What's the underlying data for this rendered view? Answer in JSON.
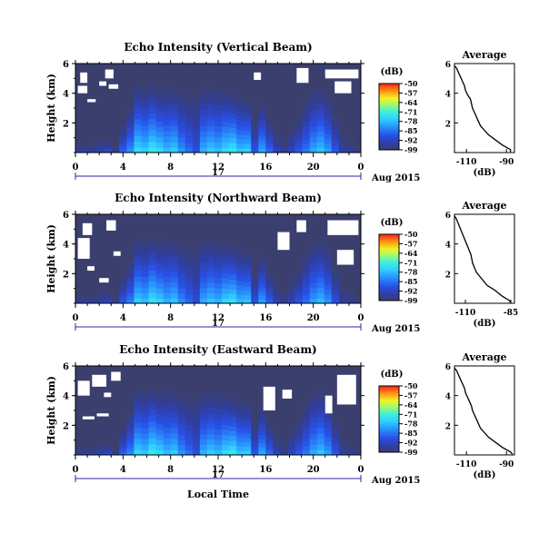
{
  "chart_data": [
    {
      "type": "heatmap",
      "title": "Echo Intensity (Vertical Beam)",
      "ylabel": "Height (km)",
      "yticks": [
        "2",
        "4",
        "6"
      ],
      "ylim": [
        0,
        6
      ],
      "xticks": [
        "0",
        "4",
        "8",
        "12",
        "16",
        "20",
        "0"
      ],
      "xlim": [
        0,
        24
      ],
      "date_row": {
        "day": "17",
        "month_year": "Aug 2015"
      },
      "colorbar": {
        "unit": "(dB)",
        "ticks": [
          "-50",
          "-57",
          "-64",
          "-71",
          "-78",
          "-85",
          "-92",
          "-99"
        ],
        "range": [
          -99,
          -50
        ]
      },
      "surface_cells": [
        -92,
        -90,
        -92,
        -91,
        -88,
        -94,
        -85,
        -80,
        -72,
        -74,
        -70,
        -72,
        -76,
        -74,
        -80,
        -84,
        -88,
        -77,
        -74,
        -76,
        -72,
        -70,
        -75,
        -74,
        -86,
        -78,
        -84,
        -90,
        -94,
        -90,
        -86,
        -83,
        -78,
        -75,
        -79,
        -86,
        -92,
        -94,
        -95
      ],
      "echo_top_km": [
        0.6,
        0.5,
        0.6,
        1.1,
        0.8,
        0.5,
        2.0,
        3.1,
        4.6,
        4.4,
        4.6,
        4.2,
        4.5,
        4.4,
        4.1,
        4.0,
        4.0,
        4.4,
        4.4,
        4.3,
        4.2,
        4.0,
        3.8,
        3.6,
        2.2,
        3.4,
        2.3,
        1.3,
        0.9,
        1.6,
        2.4,
        3.6,
        4.3,
        4.4,
        3.8,
        2.5,
        1.2,
        0.8,
        0.5
      ],
      "white_patches_hours_km": [
        [
          0.2,
          1.0,
          4.0,
          4.5
        ],
        [
          0.4,
          1.0,
          4.7,
          5.4
        ],
        [
          2.5,
          3.2,
          5.0,
          5.6
        ],
        [
          2.0,
          2.6,
          4.5,
          4.8
        ],
        [
          1.0,
          1.7,
          3.4,
          3.6
        ],
        [
          2.8,
          3.6,
          4.3,
          4.6
        ],
        [
          15.0,
          15.6,
          4.9,
          5.4
        ],
        [
          18.6,
          19.6,
          4.7,
          5.7
        ],
        [
          21.0,
          23.8,
          5.0,
          5.6
        ],
        [
          21.8,
          23.2,
          4.0,
          4.8
        ]
      ],
      "average_profile": {
        "title": "Average",
        "xlabel": "(dB)",
        "xticks": [
          "-110",
          "-90"
        ],
        "xlim": [
          -116,
          -86
        ],
        "yticks": [
          "2",
          "4",
          "6"
        ],
        "ylim": [
          0,
          6
        ],
        "height_km": [
          0.05,
          0.2,
          0.5,
          0.9,
          1.2,
          1.5,
          1.8,
          2.1,
          2.4,
          2.7,
          3.0,
          3.3,
          3.6,
          3.9,
          4.2,
          4.5,
          4.8,
          5.1,
          5.4,
          5.7,
          5.85
        ],
        "value_db": [
          -88,
          -88,
          -92,
          -96,
          -99,
          -101,
          -103,
          -104,
          -105,
          -106,
          -107,
          -107.5,
          -108,
          -109.5,
          -110.5,
          -111,
          -112,
          -113,
          -114,
          -115,
          -116
        ]
      }
    },
    {
      "type": "heatmap",
      "title": "Echo Intensity (Northward Beam)",
      "ylabel": "Height (km)",
      "yticks": [
        "2",
        "4",
        "6"
      ],
      "ylim": [
        0,
        6
      ],
      "xticks": [
        "0",
        "4",
        "8",
        "12",
        "16",
        "20",
        "0"
      ],
      "xlim": [
        0,
        24
      ],
      "date_row": {
        "day": "17",
        "month_year": "Aug 2015"
      },
      "colorbar": {
        "unit": "(dB)",
        "ticks": [
          "-50",
          "-57",
          "-64",
          "-71",
          "-78",
          "-85",
          "-92",
          "-99"
        ],
        "range": [
          -99,
          -50
        ]
      },
      "surface_cells": [
        -93,
        -91,
        -93,
        -92,
        -89,
        -95,
        -86,
        -82,
        -74,
        -76,
        -71,
        -73,
        -77,
        -75,
        -81,
        -85,
        -89,
        -78,
        -75,
        -77,
        -73,
        -71,
        -76,
        -75,
        -87,
        -79,
        -85,
        -91,
        -95,
        -91,
        -87,
        -84,
        -79,
        -76,
        -80,
        -87,
        -93,
        -95,
        -96
      ],
      "echo_top_km": [
        0.5,
        0.5,
        0.5,
        1.0,
        0.7,
        0.5,
        1.8,
        2.9,
        4.4,
        4.3,
        4.5,
        4.1,
        4.4,
        4.3,
        4.0,
        3.9,
        3.9,
        4.3,
        4.3,
        4.2,
        4.1,
        3.9,
        3.7,
        3.5,
        2.1,
        3.3,
        2.2,
        1.2,
        0.8,
        1.5,
        2.3,
        3.5,
        4.2,
        4.3,
        3.7,
        2.4,
        1.1,
        0.7,
        0.5
      ],
      "white_patches_hours_km": [
        [
          0.2,
          1.2,
          3.0,
          4.4
        ],
        [
          0.6,
          1.4,
          4.6,
          5.4
        ],
        [
          2.6,
          3.4,
          4.9,
          5.6
        ],
        [
          2.0,
          2.8,
          1.4,
          1.7
        ],
        [
          1.0,
          1.6,
          2.2,
          2.5
        ],
        [
          17.0,
          18.0,
          3.6,
          4.8
        ],
        [
          18.6,
          19.4,
          4.8,
          5.6
        ],
        [
          21.2,
          23.8,
          4.6,
          5.6
        ],
        [
          22.0,
          23.4,
          2.6,
          3.6
        ],
        [
          3.2,
          3.8,
          3.2,
          3.5
        ]
      ],
      "average_profile": {
        "title": "Average",
        "xlabel": "(dB)",
        "xticks": [
          "-110",
          "-85"
        ],
        "xlim": [
          -116,
          -83
        ],
        "yticks": [
          "2",
          "4",
          "6"
        ],
        "ylim": [
          0,
          6
        ],
        "height_km": [
          0.05,
          0.2,
          0.5,
          0.9,
          1.2,
          1.5,
          1.8,
          2.1,
          2.4,
          2.7,
          3.0,
          3.3,
          3.6,
          3.9,
          4.2,
          4.5,
          4.8,
          5.1,
          5.4,
          5.7,
          5.9
        ],
        "value_db": [
          -85,
          -86,
          -90,
          -94,
          -98,
          -100,
          -102,
          -104,
          -105,
          -106,
          -106.5,
          -107,
          -108,
          -109,
          -110,
          -111,
          -112,
          -113,
          -114,
          -115,
          -116
        ]
      }
    },
    {
      "type": "heatmap",
      "title": "Echo Intensity (Eastward Beam)",
      "ylabel": "Height (km)",
      "yticks": [
        "2",
        "4",
        "6"
      ],
      "ylim": [
        0,
        6
      ],
      "xticks": [
        "0",
        "4",
        "8",
        "12",
        "16",
        "20",
        "0"
      ],
      "xlim": [
        0,
        24
      ],
      "xlabel": "Local Time",
      "date_row": {
        "day": "17",
        "month_year": "Aug 2015"
      },
      "colorbar": {
        "unit": "(dB)",
        "ticks": [
          "-50",
          "-57",
          "-64",
          "-71",
          "-78",
          "-85",
          "-92",
          "-99"
        ],
        "range": [
          -99,
          -50
        ]
      },
      "surface_cells": [
        -92,
        -90,
        -92,
        -91,
        -88,
        -94,
        -85,
        -81,
        -73,
        -75,
        -70,
        -72,
        -76,
        -74,
        -80,
        -84,
        -88,
        -77,
        -74,
        -76,
        -72,
        -70,
        -75,
        -74,
        -86,
        -78,
        -84,
        -90,
        -94,
        -90,
        -86,
        -83,
        -78,
        -75,
        -79,
        -86,
        -92,
        -94,
        -95
      ],
      "echo_top_km": [
        0.5,
        0.5,
        0.5,
        1.0,
        0.7,
        0.5,
        1.9,
        3.0,
        4.5,
        4.4,
        4.6,
        4.2,
        4.5,
        4.4,
        4.1,
        4.0,
        4.0,
        4.3,
        4.3,
        4.2,
        4.1,
        3.9,
        3.7,
        3.5,
        2.2,
        3.3,
        2.2,
        1.2,
        0.8,
        1.5,
        2.4,
        3.6,
        4.3,
        4.4,
        3.8,
        2.4,
        1.1,
        0.7,
        0.5
      ],
      "white_patches_hours_km": [
        [
          0.2,
          1.2,
          4.0,
          5.0
        ],
        [
          1.4,
          2.6,
          4.6,
          5.4
        ],
        [
          3.0,
          3.8,
          5.0,
          5.6
        ],
        [
          2.4,
          3.0,
          3.9,
          4.2
        ],
        [
          0.6,
          1.6,
          2.4,
          2.6
        ],
        [
          1.8,
          2.8,
          2.6,
          2.8
        ],
        [
          15.8,
          16.8,
          3.0,
          4.6
        ],
        [
          17.4,
          18.2,
          3.8,
          4.4
        ],
        [
          22.0,
          23.6,
          3.4,
          5.4
        ],
        [
          21.0,
          21.6,
          2.8,
          4.0
        ]
      ],
      "average_profile": {
        "title": "Average",
        "xlabel": "(dB)",
        "xticks": [
          "-110",
          "-90"
        ],
        "xlim": [
          -116,
          -86
        ],
        "yticks": [
          "2",
          "4",
          "6"
        ],
        "ylim": [
          0,
          6
        ],
        "height_km": [
          0.05,
          0.2,
          0.5,
          0.9,
          1.2,
          1.5,
          1.8,
          2.1,
          2.4,
          2.7,
          3.0,
          3.3,
          3.6,
          3.9,
          4.2,
          4.5,
          4.8,
          5.1,
          5.4,
          5.7,
          5.85
        ],
        "value_db": [
          -87,
          -88,
          -92,
          -96,
          -99,
          -101,
          -103,
          -104,
          -105,
          -106,
          -107,
          -107.5,
          -108.5,
          -109.5,
          -110.5,
          -111,
          -112,
          -113,
          -114,
          -115,
          -116
        ]
      }
    }
  ]
}
